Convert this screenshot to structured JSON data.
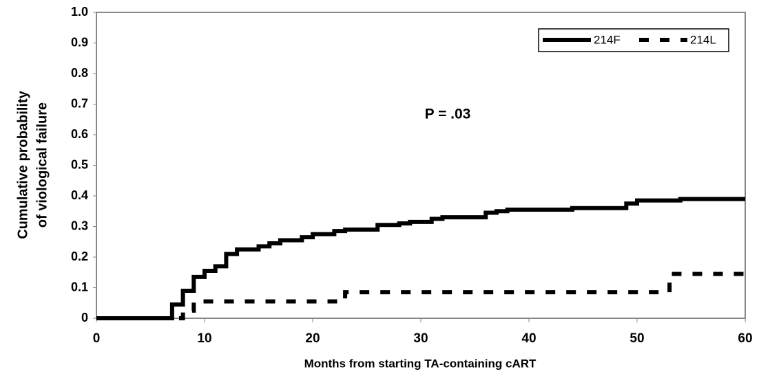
{
  "chart_data": {
    "type": "step",
    "ylabel": [
      "Cumulative probability",
      "of viological failure"
    ],
    "xlabel": "Months from starting TA-containing cART",
    "annotation": "P = .03",
    "xlim": [
      0,
      60
    ],
    "xticks": [
      0,
      10,
      20,
      30,
      40,
      50,
      60
    ],
    "ylim": [
      0,
      1
    ],
    "yticks": [
      0,
      0.1,
      0.2,
      0.3,
      0.4,
      0.5,
      0.6,
      0.7,
      0.8,
      0.9,
      {
        "value": 1,
        "label": "1.0"
      }
    ],
    "grid": false,
    "legend": "upper right",
    "series": [
      {
        "name": "214F",
        "color": "#000000",
        "dash": "solid",
        "x": [
          0,
          7,
          8,
          9,
          10,
          11,
          12,
          13,
          15,
          16,
          17,
          19,
          20,
          22,
          23,
          26,
          28,
          29,
          31,
          32,
          36,
          37,
          38,
          44,
          49,
          50,
          54,
          60
        ],
        "values": [
          0,
          0.045,
          0.09,
          0.135,
          0.155,
          0.17,
          0.21,
          0.225,
          0.235,
          0.245,
          0.255,
          0.265,
          0.275,
          0.285,
          0.29,
          0.305,
          0.31,
          0.315,
          0.325,
          0.33,
          0.345,
          0.35,
          0.355,
          0.36,
          0.375,
          0.385,
          0.39,
          0.39
        ]
      },
      {
        "name": "214L",
        "color": "#000000",
        "dash": "dashed",
        "x": [
          0,
          8,
          9,
          23,
          53,
          60
        ],
        "values": [
          0,
          0.025,
          0.055,
          0.085,
          0.145,
          0.145
        ]
      }
    ]
  }
}
